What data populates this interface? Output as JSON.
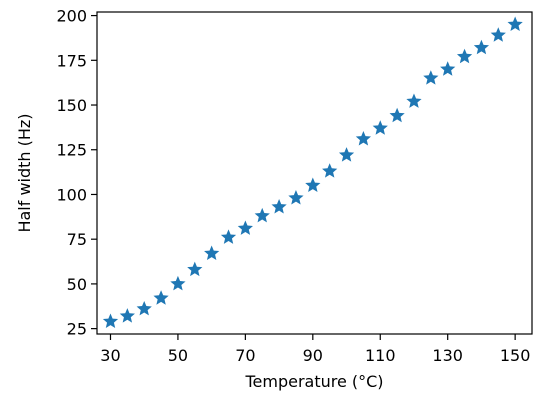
{
  "chart_data": {
    "type": "scatter",
    "xlabel": "Temperature (°C)",
    "ylabel": "Half width (Hz)",
    "xlim": [
      26,
      155
    ],
    "ylim": [
      22,
      202
    ],
    "x_ticks": [
      30,
      50,
      70,
      90,
      110,
      130,
      150
    ],
    "y_ticks": [
      25,
      50,
      75,
      100,
      125,
      150,
      175,
      200
    ],
    "marker": "star",
    "color": "#1f77b4",
    "grid": false,
    "points": [
      {
        "x": 30,
        "y": 29
      },
      {
        "x": 35,
        "y": 32
      },
      {
        "x": 40,
        "y": 36
      },
      {
        "x": 45,
        "y": 42
      },
      {
        "x": 50,
        "y": 50
      },
      {
        "x": 55,
        "y": 58
      },
      {
        "x": 60,
        "y": 67
      },
      {
        "x": 65,
        "y": 76
      },
      {
        "x": 70,
        "y": 81
      },
      {
        "x": 75,
        "y": 88
      },
      {
        "x": 80,
        "y": 93
      },
      {
        "x": 85,
        "y": 98
      },
      {
        "x": 90,
        "y": 105
      },
      {
        "x": 95,
        "y": 113
      },
      {
        "x": 100,
        "y": 122
      },
      {
        "x": 105,
        "y": 131
      },
      {
        "x": 110,
        "y": 137
      },
      {
        "x": 115,
        "y": 144
      },
      {
        "x": 120,
        "y": 152
      },
      {
        "x": 125,
        "y": 165
      },
      {
        "x": 130,
        "y": 170
      },
      {
        "x": 135,
        "y": 177
      },
      {
        "x": 140,
        "y": 182
      },
      {
        "x": 145,
        "y": 189
      },
      {
        "x": 150,
        "y": 195
      }
    ]
  }
}
